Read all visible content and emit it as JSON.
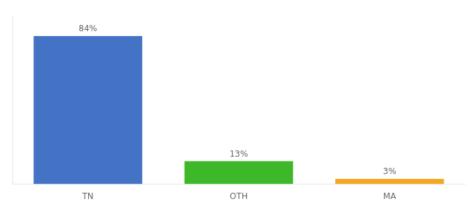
{
  "chart_data": {
    "type": "bar",
    "categories": [
      "TN",
      "OTH",
      "MA"
    ],
    "values": [
      84,
      13,
      3
    ],
    "value_labels": [
      "84%",
      "13%",
      "3%"
    ],
    "colors": [
      "#4472C4",
      "#3CB828",
      "#F5A623"
    ],
    "ylim": [
      0,
      95
    ],
    "data_labels": true,
    "tick_labels": "x",
    "grid": false
  }
}
